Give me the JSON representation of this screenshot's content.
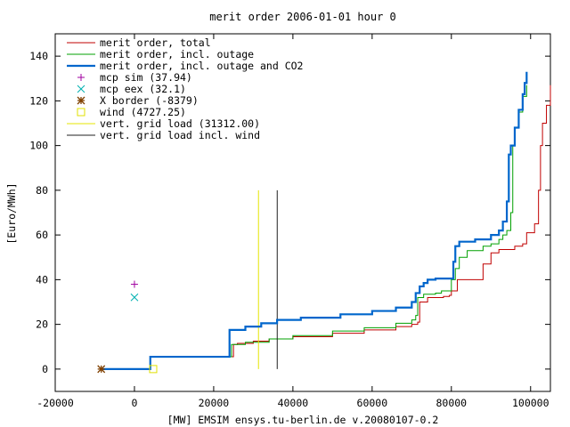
{
  "chart_data": {
    "type": "line",
    "title": "merit order 2006-01-01 hour 0",
    "xlabel": "[MW] EMSIM ensys.tu-berlin.de v.20080107-0.2",
    "ylabel": "[Euro/MWh]",
    "xlim": [
      -20000,
      105000
    ],
    "ylim": [
      -10,
      150
    ],
    "x_ticks": [
      -20000,
      0,
      20000,
      40000,
      60000,
      80000,
      100000
    ],
    "x_tick_labels": [
      "-20000",
      "0",
      "20000",
      "40000",
      "60000",
      "80000",
      "100000"
    ],
    "y_ticks": [
      0,
      20,
      40,
      60,
      80,
      100,
      120,
      140
    ],
    "y_tick_labels": [
      "0",
      "20",
      "40",
      "60",
      "80",
      "100",
      "120",
      "140"
    ],
    "grid": false,
    "legend_position": "top-left",
    "series": [
      {
        "name": "merit order, total",
        "style": "line",
        "color": "#c00000",
        "points": [
          [
            -8379,
            0
          ],
          [
            4000,
            0
          ],
          [
            4000,
            5.5
          ],
          [
            24000,
            5.5
          ],
          [
            25000,
            11
          ],
          [
            26000,
            11.5
          ],
          [
            30000,
            12.5
          ],
          [
            34000,
            13.5
          ],
          [
            40000,
            14.5
          ],
          [
            50000,
            16
          ],
          [
            58000,
            17.5
          ],
          [
            66000,
            19
          ],
          [
            70000,
            20
          ],
          [
            71500,
            21
          ],
          [
            72000,
            30
          ],
          [
            74000,
            32
          ],
          [
            78000,
            32.5
          ],
          [
            79500,
            33
          ],
          [
            80000,
            35
          ],
          [
            81500,
            40
          ],
          [
            87000,
            40
          ],
          [
            88000,
            47
          ],
          [
            90000,
            52
          ],
          [
            92000,
            53.5
          ],
          [
            96000,
            55
          ],
          [
            98000,
            56
          ],
          [
            99000,
            61
          ],
          [
            101000,
            65
          ],
          [
            102000,
            80
          ],
          [
            102500,
            100
          ],
          [
            103000,
            110
          ],
          [
            104000,
            118
          ],
          [
            105000,
            127
          ]
        ]
      },
      {
        "name": "merit order, incl. outage",
        "style": "line",
        "color": "#00a000",
        "points": [
          [
            -8379,
            0
          ],
          [
            4000,
            0
          ],
          [
            4000,
            5.5
          ],
          [
            24000,
            5.5
          ],
          [
            24500,
            11
          ],
          [
            28000,
            12
          ],
          [
            34000,
            13.5
          ],
          [
            40000,
            15
          ],
          [
            50000,
            17
          ],
          [
            58000,
            18.5
          ],
          [
            66000,
            20.5
          ],
          [
            70000,
            22
          ],
          [
            71000,
            24
          ],
          [
            71500,
            32
          ],
          [
            73000,
            33.5
          ],
          [
            76000,
            34
          ],
          [
            77500,
            35
          ],
          [
            80000,
            40
          ],
          [
            81000,
            45
          ],
          [
            82000,
            50
          ],
          [
            84000,
            53
          ],
          [
            88000,
            55
          ],
          [
            90000,
            56
          ],
          [
            92000,
            58
          ],
          [
            93000,
            60
          ],
          [
            94000,
            62
          ],
          [
            95000,
            70
          ],
          [
            95500,
            100
          ],
          [
            96000,
            108
          ],
          [
            97000,
            115
          ],
          [
            98000,
            122
          ],
          [
            99000,
            127
          ]
        ]
      },
      {
        "name": "merit order, incl. outage and CO2",
        "style": "line",
        "color": "#0066cc",
        "points": [
          [
            -8379,
            0
          ],
          [
            4000,
            0
          ],
          [
            4000,
            5.5
          ],
          [
            24000,
            5.5
          ],
          [
            24000,
            17.5
          ],
          [
            28000,
            19
          ],
          [
            32000,
            20.5
          ],
          [
            36000,
            22
          ],
          [
            42000,
            23
          ],
          [
            52000,
            24.5
          ],
          [
            60000,
            26
          ],
          [
            66000,
            27.5
          ],
          [
            70000,
            30
          ],
          [
            71000,
            34
          ],
          [
            72000,
            37
          ],
          [
            73000,
            38.5
          ],
          [
            74000,
            40
          ],
          [
            76000,
            40.5
          ],
          [
            80000,
            40.5
          ],
          [
            80500,
            48
          ],
          [
            81000,
            55
          ],
          [
            82000,
            57
          ],
          [
            86000,
            58
          ],
          [
            90000,
            60
          ],
          [
            92000,
            62
          ],
          [
            93000,
            66
          ],
          [
            94000,
            75
          ],
          [
            94500,
            96
          ],
          [
            95000,
            100
          ],
          [
            96000,
            108
          ],
          [
            97000,
            116
          ],
          [
            98000,
            123
          ],
          [
            98500,
            128
          ],
          [
            99000,
            133
          ]
        ]
      },
      {
        "name": "mcp sim (37.94)",
        "style": "marker",
        "marker": "plus",
        "color": "#a000a0",
        "points": [
          [
            0,
            37.94
          ]
        ]
      },
      {
        "name": "mcp eex (32.1)",
        "style": "marker",
        "marker": "cross",
        "color": "#00b0b0",
        "points": [
          [
            0,
            32.1
          ]
        ]
      },
      {
        "name": "X border (-8379)",
        "style": "marker",
        "marker": "star",
        "color": "#804000",
        "points": [
          [
            -8379,
            0
          ]
        ]
      },
      {
        "name": "wind (4727.25)",
        "style": "marker",
        "marker": "square",
        "color": "#e0e000",
        "points": [
          [
            4727.25,
            0
          ]
        ]
      },
      {
        "name": "vert. grid load (31312.00)",
        "style": "line",
        "color": "#e6e600",
        "points": [
          [
            31312,
            0
          ],
          [
            31312,
            80
          ]
        ]
      },
      {
        "name": "vert. grid load incl. wind",
        "style": "line",
        "color": "#202020",
        "points": [
          [
            36039.25,
            0
          ],
          [
            36039.25,
            80
          ]
        ]
      }
    ]
  }
}
